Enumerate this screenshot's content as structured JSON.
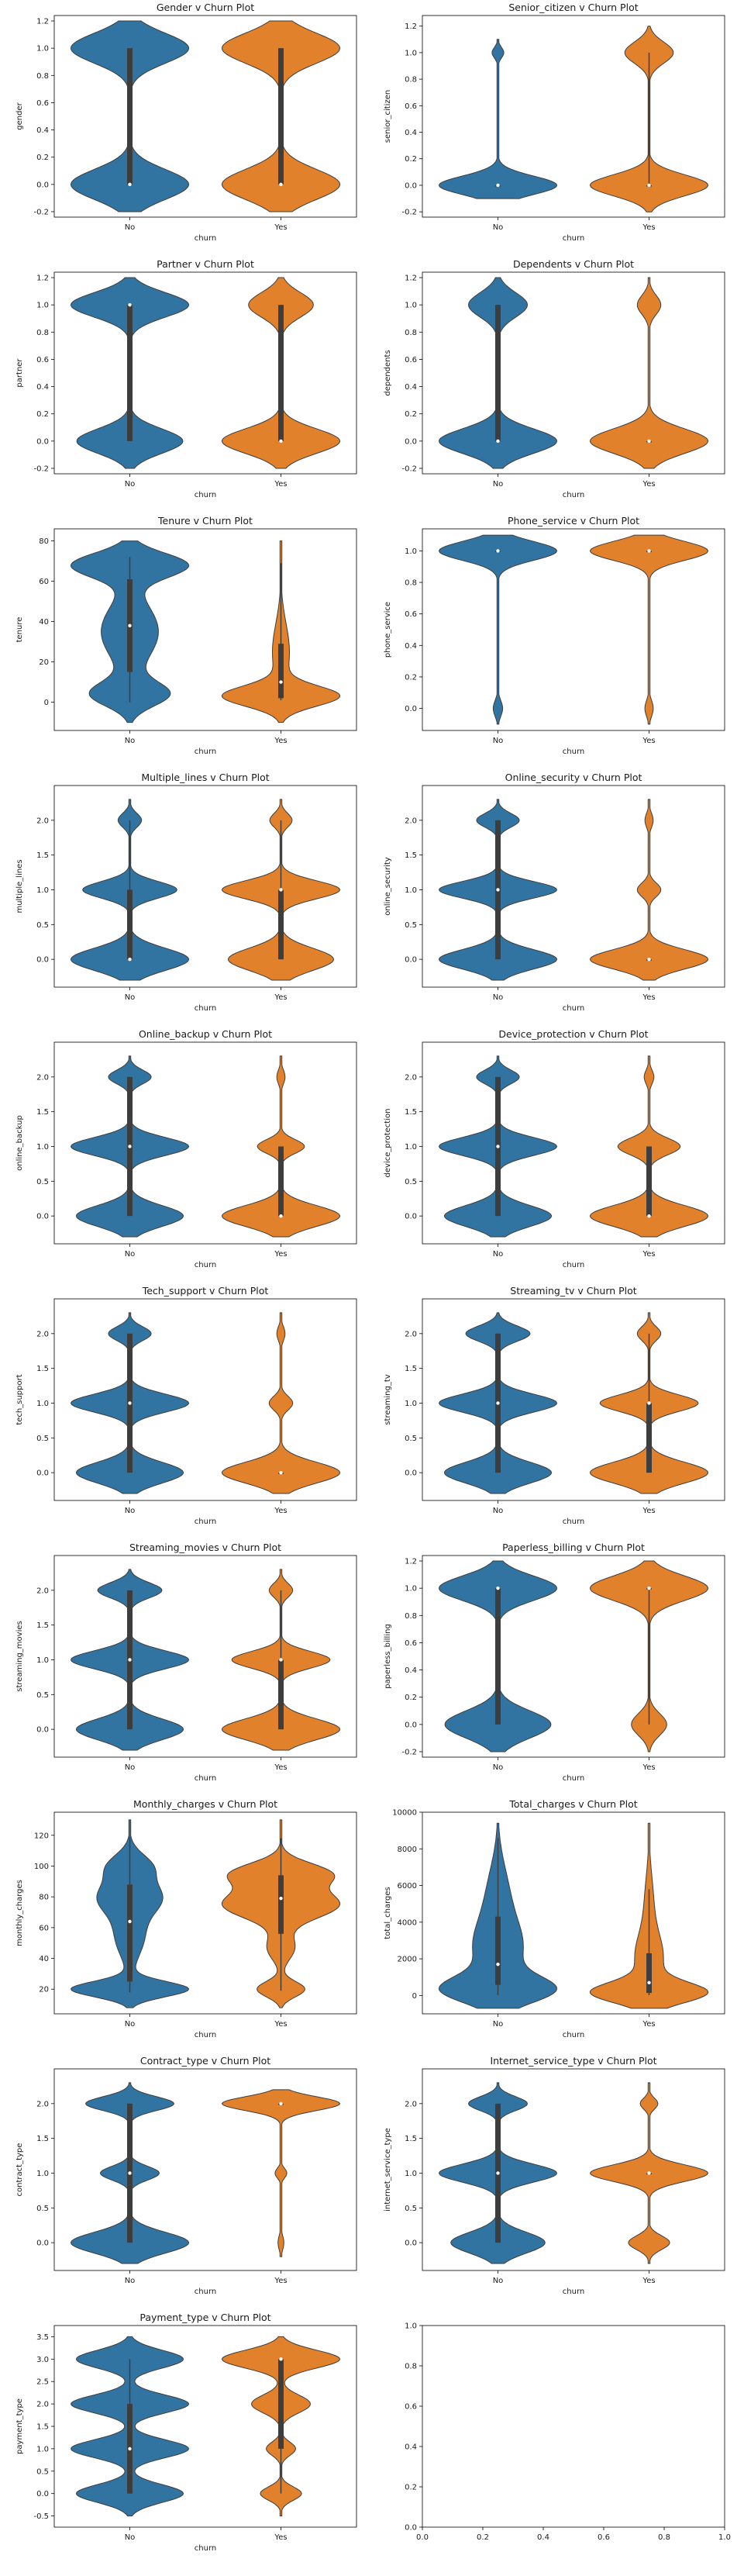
{
  "chart_data": [
    {
      "type": "violin",
      "title": "Gender v Churn Plot",
      "xlabel": "churn",
      "ylabel": "gender",
      "categories": [
        "No",
        "Yes"
      ],
      "ylim": [
        -0.24,
        1.24
      ],
      "yticks": [
        "-0.2",
        "0.0",
        "0.2",
        "0.4",
        "0.6",
        "0.8",
        "1.0",
        "1.2"
      ],
      "series": [
        {
          "category": "No",
          "median": 0.0,
          "q1": 0.0,
          "q3": 1.0,
          "whisker_low": 0.0,
          "whisker_high": 1.0,
          "range": [
            -0.2,
            1.2
          ],
          "color": "#3274a1"
        },
        {
          "category": "Yes",
          "median": 0.0,
          "q1": 0.0,
          "q3": 1.0,
          "whisker_low": 0.0,
          "whisker_high": 1.0,
          "range": [
            -0.2,
            1.2
          ],
          "color": "#e1812c"
        }
      ]
    },
    {
      "type": "violin",
      "title": "Senior_citizen v Churn Plot",
      "xlabel": "churn",
      "ylabel": "senior_citizen",
      "categories": [
        "No",
        "Yes"
      ],
      "ylim": [
        -0.24,
        1.28
      ],
      "yticks": [
        "-0.2",
        "0.0",
        "0.2",
        "0.4",
        "0.6",
        "0.8",
        "1.0",
        "1.2"
      ],
      "series": [
        {
          "category": "No",
          "median": 0.0,
          "q1": 0.0,
          "q3": 0.0,
          "whisker_low": 0.0,
          "whisker_high": 0.0,
          "range": [
            -0.1,
            1.1
          ],
          "color": "#3274a1"
        },
        {
          "category": "Yes",
          "median": 0.0,
          "q1": 0.0,
          "q3": 0.0,
          "whisker_low": 0.0,
          "whisker_high": 1.0,
          "range": [
            -0.2,
            1.2
          ],
          "color": "#e1812c"
        }
      ]
    },
    {
      "type": "violin",
      "title": "Partner v Churn Plot",
      "xlabel": "churn",
      "ylabel": "partner",
      "categories": [
        "No",
        "Yes"
      ],
      "ylim": [
        -0.24,
        1.24
      ],
      "yticks": [
        "-0.2",
        "0.0",
        "0.2",
        "0.4",
        "0.6",
        "0.8",
        "1.0",
        "1.2"
      ],
      "series": [
        {
          "category": "No",
          "median": 1.0,
          "q1": 0.0,
          "q3": 1.0,
          "whisker_low": 0.0,
          "whisker_high": 1.0,
          "range": [
            -0.2,
            1.2
          ],
          "color": "#3274a1"
        },
        {
          "category": "Yes",
          "median": 0.0,
          "q1": 0.0,
          "q3": 1.0,
          "whisker_low": 0.0,
          "whisker_high": 1.0,
          "range": [
            -0.2,
            1.2
          ],
          "color": "#e1812c"
        }
      ]
    },
    {
      "type": "violin",
      "title": "Dependents v Churn Plot",
      "xlabel": "churn",
      "ylabel": "dependents",
      "categories": [
        "No",
        "Yes"
      ],
      "ylim": [
        -0.24,
        1.24
      ],
      "yticks": [
        "-0.2",
        "0.0",
        "0.2",
        "0.4",
        "0.6",
        "0.8",
        "1.0",
        "1.2"
      ],
      "series": [
        {
          "category": "No",
          "median": 0.0,
          "q1": 0.0,
          "q3": 1.0,
          "whisker_low": 0.0,
          "whisker_high": 1.0,
          "range": [
            -0.2,
            1.2
          ],
          "color": "#3274a1"
        },
        {
          "category": "Yes",
          "median": 0.0,
          "q1": 0.0,
          "q3": 0.0,
          "whisker_low": 0.0,
          "whisker_high": 0.0,
          "range": [
            -0.2,
            1.2
          ],
          "color": "#e1812c"
        }
      ]
    },
    {
      "type": "violin",
      "title": "Tenure v Churn Plot",
      "xlabel": "churn",
      "ylabel": "tenure",
      "categories": [
        "No",
        "Yes"
      ],
      "ylim": [
        -14,
        86
      ],
      "yticks": [
        "0",
        "20",
        "40",
        "60",
        "80"
      ],
      "series": [
        {
          "category": "No",
          "median": 38,
          "q1": 15,
          "q3": 61,
          "whisker_low": 0,
          "whisker_high": 72,
          "range": [
            -10,
            80
          ],
          "color": "#3274a1"
        },
        {
          "category": "Yes",
          "median": 10,
          "q1": 2,
          "q3": 29,
          "whisker_low": 1,
          "whisker_high": 69,
          "range": [
            -10,
            80
          ],
          "color": "#e1812c"
        }
      ]
    },
    {
      "type": "violin",
      "title": "Phone_service v Churn Plot",
      "xlabel": "churn",
      "ylabel": "phone_service",
      "categories": [
        "No",
        "Yes"
      ],
      "ylim": [
        -0.14,
        1.14
      ],
      "yticks": [
        "0.0",
        "0.2",
        "0.4",
        "0.6",
        "0.8",
        "1.0"
      ],
      "series": [
        {
          "category": "No",
          "median": 1.0,
          "q1": 1.0,
          "q3": 1.0,
          "whisker_low": 1.0,
          "whisker_high": 1.0,
          "range": [
            -0.1,
            1.1
          ],
          "color": "#3274a1"
        },
        {
          "category": "Yes",
          "median": 1.0,
          "q1": 1.0,
          "q3": 1.0,
          "whisker_low": 1.0,
          "whisker_high": 1.0,
          "range": [
            -0.1,
            1.1
          ],
          "color": "#e1812c"
        }
      ]
    },
    {
      "type": "violin",
      "title": "Multiple_lines v Churn Plot",
      "xlabel": "churn",
      "ylabel": "multiple_lines",
      "categories": [
        "No",
        "Yes"
      ],
      "ylim": [
        -0.4,
        2.5
      ],
      "yticks": [
        "0.0",
        "0.5",
        "1.0",
        "1.5",
        "2.0"
      ],
      "series": [
        {
          "category": "No",
          "median": 0.0,
          "q1": 0.0,
          "q3": 1.0,
          "whisker_low": 0.0,
          "whisker_high": 2.0,
          "range": [
            -0.3,
            2.3
          ],
          "color": "#3274a1"
        },
        {
          "category": "Yes",
          "median": 1.0,
          "q1": 0.0,
          "q3": 1.0,
          "whisker_low": 0.0,
          "whisker_high": 2.0,
          "range": [
            -0.3,
            2.3
          ],
          "color": "#e1812c"
        }
      ]
    },
    {
      "type": "violin",
      "title": "Online_security v Churn Plot",
      "xlabel": "churn",
      "ylabel": "online_security",
      "categories": [
        "No",
        "Yes"
      ],
      "ylim": [
        -0.4,
        2.5
      ],
      "yticks": [
        "0.0",
        "0.5",
        "1.0",
        "1.5",
        "2.0"
      ],
      "series": [
        {
          "category": "No",
          "median": 1.0,
          "q1": 0.0,
          "q3": 2.0,
          "whisker_low": 0.0,
          "whisker_high": 2.0,
          "range": [
            -0.3,
            2.3
          ],
          "color": "#3274a1"
        },
        {
          "category": "Yes",
          "median": 0.0,
          "q1": 0.0,
          "q3": 0.0,
          "whisker_low": 0.0,
          "whisker_high": 0.0,
          "range": [
            -0.3,
            2.3
          ],
          "color": "#e1812c"
        }
      ]
    },
    {
      "type": "violin",
      "title": "Online_backup v Churn Plot",
      "xlabel": "churn",
      "ylabel": "online_backup",
      "categories": [
        "No",
        "Yes"
      ],
      "ylim": [
        -0.4,
        2.5
      ],
      "yticks": [
        "0.0",
        "0.5",
        "1.0",
        "1.5",
        "2.0"
      ],
      "series": [
        {
          "category": "No",
          "median": 1.0,
          "q1": 0.0,
          "q3": 2.0,
          "whisker_low": 0.0,
          "whisker_high": 2.0,
          "range": [
            -0.3,
            2.3
          ],
          "color": "#3274a1"
        },
        {
          "category": "Yes",
          "median": 0.0,
          "q1": 0.0,
          "q3": 1.0,
          "whisker_low": 0.0,
          "whisker_high": 1.0,
          "range": [
            -0.3,
            2.3
          ],
          "color": "#e1812c"
        }
      ]
    },
    {
      "type": "violin",
      "title": "Device_protection v Churn Plot",
      "xlabel": "churn",
      "ylabel": "device_protection",
      "categories": [
        "No",
        "Yes"
      ],
      "ylim": [
        -0.4,
        2.5
      ],
      "yticks": [
        "0.0",
        "0.5",
        "1.0",
        "1.5",
        "2.0"
      ],
      "series": [
        {
          "category": "No",
          "median": 1.0,
          "q1": 0.0,
          "q3": 2.0,
          "whisker_low": 0.0,
          "whisker_high": 2.0,
          "range": [
            -0.3,
            2.3
          ],
          "color": "#3274a1"
        },
        {
          "category": "Yes",
          "median": 0.0,
          "q1": 0.0,
          "q3": 1.0,
          "whisker_low": 0.0,
          "whisker_high": 1.0,
          "range": [
            -0.3,
            2.3
          ],
          "color": "#e1812c"
        }
      ]
    },
    {
      "type": "violin",
      "title": "Tech_support v Churn Plot",
      "xlabel": "churn",
      "ylabel": "tech_support",
      "categories": [
        "No",
        "Yes"
      ],
      "ylim": [
        -0.4,
        2.5
      ],
      "yticks": [
        "0.0",
        "0.5",
        "1.0",
        "1.5",
        "2.0"
      ],
      "series": [
        {
          "category": "No",
          "median": 1.0,
          "q1": 0.0,
          "q3": 2.0,
          "whisker_low": 0.0,
          "whisker_high": 2.0,
          "range": [
            -0.3,
            2.3
          ],
          "color": "#3274a1"
        },
        {
          "category": "Yes",
          "median": 0.0,
          "q1": 0.0,
          "q3": 0.0,
          "whisker_low": 0.0,
          "whisker_high": 0.0,
          "range": [
            -0.3,
            2.3
          ],
          "color": "#e1812c"
        }
      ]
    },
    {
      "type": "violin",
      "title": "Streaming_tv v Churn Plot",
      "xlabel": "churn",
      "ylabel": "streaming_tv",
      "categories": [
        "No",
        "Yes"
      ],
      "ylim": [
        -0.4,
        2.5
      ],
      "yticks": [
        "0.0",
        "0.5",
        "1.0",
        "1.5",
        "2.0"
      ],
      "series": [
        {
          "category": "No",
          "median": 1.0,
          "q1": 0.0,
          "q3": 2.0,
          "whisker_low": 0.0,
          "whisker_high": 2.0,
          "range": [
            -0.3,
            2.3
          ],
          "color": "#3274a1"
        },
        {
          "category": "Yes",
          "median": 1.0,
          "q1": 0.0,
          "q3": 1.0,
          "whisker_low": 0.0,
          "whisker_high": 2.0,
          "range": [
            -0.3,
            2.3
          ],
          "color": "#e1812c"
        }
      ]
    },
    {
      "type": "violin",
      "title": "Streaming_movies v Churn Plot",
      "xlabel": "churn",
      "ylabel": "streaming_movies",
      "categories": [
        "No",
        "Yes"
      ],
      "ylim": [
        -0.4,
        2.5
      ],
      "yticks": [
        "0.0",
        "0.5",
        "1.0",
        "1.5",
        "2.0"
      ],
      "series": [
        {
          "category": "No",
          "median": 1.0,
          "q1": 0.0,
          "q3": 2.0,
          "whisker_low": 0.0,
          "whisker_high": 2.0,
          "range": [
            -0.3,
            2.3
          ],
          "color": "#3274a1"
        },
        {
          "category": "Yes",
          "median": 1.0,
          "q1": 0.0,
          "q3": 1.0,
          "whisker_low": 0.0,
          "whisker_high": 2.0,
          "range": [
            -0.3,
            2.3
          ],
          "color": "#e1812c"
        }
      ]
    },
    {
      "type": "violin",
      "title": "Paperless_billing v Churn Plot",
      "xlabel": "churn",
      "ylabel": "paperless_billing",
      "categories": [
        "No",
        "Yes"
      ],
      "ylim": [
        -0.24,
        1.24
      ],
      "yticks": [
        "-0.2",
        "0.0",
        "0.2",
        "0.4",
        "0.6",
        "0.8",
        "1.0",
        "1.2"
      ],
      "series": [
        {
          "category": "No",
          "median": 1.0,
          "q1": 0.0,
          "q3": 1.0,
          "whisker_low": 0.0,
          "whisker_high": 1.0,
          "range": [
            -0.2,
            1.2
          ],
          "color": "#3274a1"
        },
        {
          "category": "Yes",
          "median": 1.0,
          "q1": 1.0,
          "q3": 1.0,
          "whisker_low": 0.0,
          "whisker_high": 1.0,
          "range": [
            -0.2,
            1.2
          ],
          "color": "#e1812c"
        }
      ]
    },
    {
      "type": "violin",
      "title": "Monthly_charges v Churn Plot",
      "xlabel": "churn",
      "ylabel": "monthly_charges",
      "categories": [
        "No",
        "Yes"
      ],
      "ylim": [
        4,
        135
      ],
      "yticks": [
        "20",
        "40",
        "60",
        "80",
        "100",
        "120"
      ],
      "series": [
        {
          "category": "No",
          "median": 64,
          "q1": 25,
          "q3": 88,
          "whisker_low": 18,
          "whisker_high": 119,
          "range": [
            8,
            130
          ],
          "color": "#3274a1"
        },
        {
          "category": "Yes",
          "median": 79,
          "q1": 56,
          "q3": 94,
          "whisker_low": 19,
          "whisker_high": 118,
          "range": [
            8,
            130
          ],
          "color": "#e1812c"
        }
      ]
    },
    {
      "type": "violin",
      "title": "Total_charges v Churn Plot",
      "xlabel": "churn",
      "ylabel": "total_charges",
      "categories": [
        "No",
        "Yes"
      ],
      "ylim": [
        -1000,
        10000
      ],
      "yticks": [
        "0",
        "2000",
        "4000",
        "6000",
        "8000",
        "10000"
      ],
      "series": [
        {
          "category": "No",
          "median": 1700,
          "q1": 580,
          "q3": 4300,
          "whisker_low": 20,
          "whisker_high": 8600,
          "range": [
            -700,
            9400
          ],
          "color": "#3274a1"
        },
        {
          "category": "Yes",
          "median": 700,
          "q1": 140,
          "q3": 2300,
          "whisker_low": 19,
          "whisker_high": 5800,
          "range": [
            -700,
            9400
          ],
          "color": "#e1812c"
        }
      ]
    },
    {
      "type": "violin",
      "title": "Contract_type v Churn Plot",
      "xlabel": "churn",
      "ylabel": "contract_type",
      "categories": [
        "No",
        "Yes"
      ],
      "ylim": [
        -0.4,
        2.5
      ],
      "yticks": [
        "0.0",
        "0.5",
        "1.0",
        "1.5",
        "2.0"
      ],
      "series": [
        {
          "category": "No",
          "median": 1.0,
          "q1": 0.0,
          "q3": 2.0,
          "whisker_low": 0.0,
          "whisker_high": 2.0,
          "range": [
            -0.3,
            2.3
          ],
          "color": "#3274a1"
        },
        {
          "category": "Yes",
          "median": 2.0,
          "q1": 2.0,
          "q3": 2.0,
          "whisker_low": 2.0,
          "whisker_high": 2.0,
          "range": [
            -0.2,
            2.2
          ],
          "color": "#e1812c"
        }
      ]
    },
    {
      "type": "violin",
      "title": "Internet_service_type v Churn Plot",
      "xlabel": "churn",
      "ylabel": "internet_service_type",
      "categories": [
        "No",
        "Yes"
      ],
      "ylim": [
        -0.4,
        2.5
      ],
      "yticks": [
        "0.0",
        "0.5",
        "1.0",
        "1.5",
        "2.0"
      ],
      "series": [
        {
          "category": "No",
          "median": 1.0,
          "q1": 0.0,
          "q3": 2.0,
          "whisker_low": 0.0,
          "whisker_high": 2.0,
          "range": [
            -0.3,
            2.3
          ],
          "color": "#3274a1"
        },
        {
          "category": "Yes",
          "median": 1.0,
          "q1": 1.0,
          "q3": 1.0,
          "whisker_low": 1.0,
          "whisker_high": 1.0,
          "range": [
            -0.3,
            2.3
          ],
          "color": "#e1812c"
        }
      ]
    },
    {
      "type": "violin",
      "title": "Payment_type v Churn Plot",
      "xlabel": "churn",
      "ylabel": "payment_type",
      "categories": [
        "No",
        "Yes"
      ],
      "ylim": [
        -0.75,
        3.75
      ],
      "yticks": [
        "-0.5",
        "0.0",
        "0.5",
        "1.0",
        "1.5",
        "2.0",
        "2.5",
        "3.0",
        "3.5"
      ],
      "series": [
        {
          "category": "No",
          "median": 1.0,
          "q1": 0.0,
          "q3": 2.0,
          "whisker_low": 0.0,
          "whisker_high": 3.0,
          "range": [
            -0.5,
            3.5
          ],
          "color": "#3274a1"
        },
        {
          "category": "Yes",
          "median": 3.0,
          "q1": 1.0,
          "q3": 3.0,
          "whisker_low": 0.0,
          "whisker_high": 3.0,
          "range": [
            -0.5,
            3.5
          ],
          "color": "#e1812c"
        }
      ]
    },
    {
      "type": "empty",
      "title": "",
      "xlabel": "",
      "ylabel": "",
      "xlim": [
        0.0,
        1.0
      ],
      "ylim": [
        0.0,
        1.0
      ],
      "xticks": [
        "0.0",
        "0.2",
        "0.4",
        "0.6",
        "0.8",
        "1.0"
      ],
      "yticks": [
        "0.0",
        "0.2",
        "0.4",
        "0.6",
        "0.8",
        "1.0"
      ]
    }
  ]
}
